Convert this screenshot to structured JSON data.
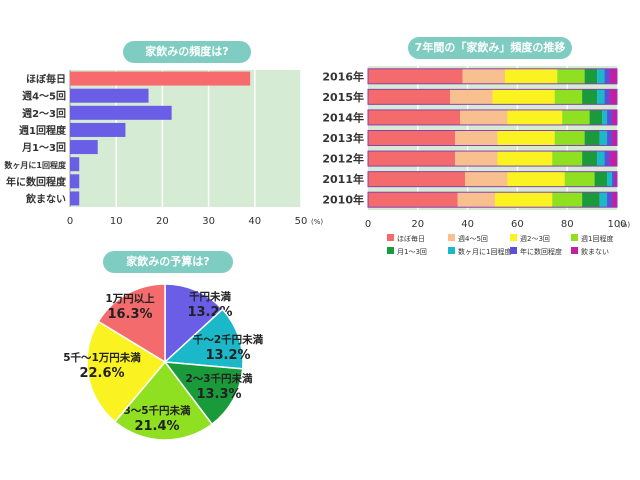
{
  "chart_data": [
    {
      "type": "bar",
      "title": "家飲みの頻度は?",
      "categories": [
        "ほぼ毎日",
        "週4～5回",
        "週2～3回",
        "週1回程度",
        "月1～3回",
        "数ヶ月に1回程度",
        "年に数回程度",
        "飲まない"
      ],
      "values": [
        39,
        17,
        22,
        12,
        6,
        2,
        2,
        2
      ],
      "highlight_color": "#f76a6d",
      "bar_color": "#6a5ee6",
      "xlim": [
        0,
        50
      ],
      "xticks": [
        "0",
        "10",
        "20",
        "30",
        "40",
        "50"
      ],
      "unit": "(%)"
    },
    {
      "type": "bar",
      "stacked": true,
      "title": "7年間の「家飲み」頻度の推移",
      "categories": [
        "2016年",
        "2015年",
        "2014年",
        "2013年",
        "2012年",
        "2011年",
        "2010年"
      ],
      "series": [
        {
          "name": "ほぼ毎日",
          "color": "#f46b6e",
          "values": [
            38,
            33,
            37,
            35,
            35,
            39,
            36
          ]
        },
        {
          "name": "週4～5回",
          "color": "#f9c08f",
          "values": [
            17,
            17,
            19,
            17,
            17,
            17,
            15
          ]
        },
        {
          "name": "週2～3回",
          "color": "#fbf321",
          "values": [
            21,
            25,
            22,
            23,
            22,
            23,
            23
          ]
        },
        {
          "name": "週1回程度",
          "color": "#8ee021",
          "values": [
            11,
            11,
            11,
            12,
            12,
            12,
            12
          ]
        },
        {
          "name": "月1～3回",
          "color": "#1a9a3a",
          "values": [
            5,
            6,
            5,
            6,
            6,
            5,
            7
          ]
        },
        {
          "name": "数ヶ月に1回程度",
          "color": "#1bb8c9",
          "values": [
            3,
            3,
            2,
            3,
            3,
            2,
            3
          ]
        },
        {
          "name": "年に数回程度",
          "color": "#5a4fd8",
          "values": [
            2,
            2,
            2,
            2,
            2,
            1,
            2
          ]
        },
        {
          "name": "飲まない",
          "color": "#c21fa6",
          "values": [
            3,
            3,
            2,
            2,
            3,
            1,
            2
          ]
        }
      ],
      "xlim": [
        0,
        100
      ],
      "xticks": [
        "0",
        "20",
        "40",
        "60",
        "80",
        "100"
      ],
      "unit": "(%)"
    },
    {
      "type": "pie",
      "title": "家飲みの予算は?",
      "slices": [
        {
          "label": "千円未満",
          "value": 13.2,
          "value_label": "13.2%",
          "color": "#6a5ee6"
        },
        {
          "label": "千～2千円未満",
          "value": 13.2,
          "value_label": "13.2%",
          "color": "#1bb8c9"
        },
        {
          "label": "2～3千円未満",
          "value": 13.3,
          "value_label": "13.3%",
          "color": "#1a9a3a"
        },
        {
          "label": "3～5千円未満",
          "value": 21.4,
          "value_label": "21.4%",
          "color": "#8ee021"
        },
        {
          "label": "5千～1万円未満",
          "value": 22.6,
          "value_label": "22.6%",
          "color": "#fbf321"
        },
        {
          "label": "1万円以上",
          "value": 16.3,
          "value_label": "16.3%",
          "color": "#f46b6e"
        }
      ]
    }
  ]
}
